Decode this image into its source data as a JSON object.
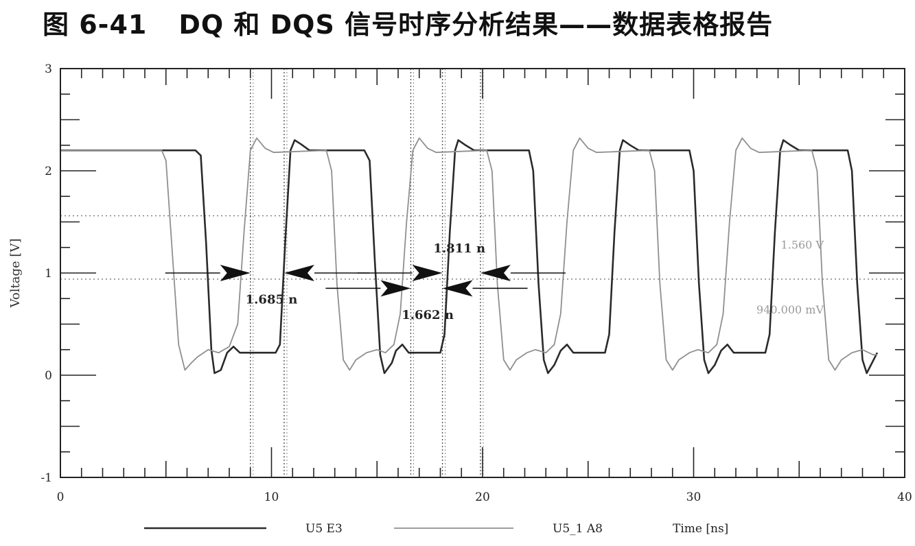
{
  "figure": {
    "number": "图 6-41",
    "caption": "DQ 和 DQS 信号时序分析结果——数据表格报告"
  },
  "chart_data": {
    "type": "line",
    "xlabel": "Time [ns]",
    "ylabel": "Voltage [V]",
    "xlim": [
      0,
      40
    ],
    "ylim": [
      -1,
      3
    ],
    "x_ticks": [
      "0",
      "10",
      "20",
      "30",
      "40"
    ],
    "y_ticks": [
      "-1",
      "0",
      "1",
      "2",
      "3"
    ],
    "grid": false,
    "legend_position": "bottom",
    "series": [
      {
        "name": "U5 E3",
        "color": "#2a2a2a",
        "points": [
          [
            0,
            2.2
          ],
          [
            6.4,
            2.2
          ],
          [
            6.65,
            2.15
          ],
          [
            6.9,
            1.3
          ],
          [
            7.15,
            0.25
          ],
          [
            7.3,
            0.02
          ],
          [
            7.6,
            0.05
          ],
          [
            7.9,
            0.22
          ],
          [
            8.2,
            0.28
          ],
          [
            8.5,
            0.22
          ],
          [
            10.2,
            0.22
          ],
          [
            10.4,
            0.3
          ],
          [
            10.65,
            1.3
          ],
          [
            10.9,
            2.2
          ],
          [
            11.1,
            2.3
          ],
          [
            11.4,
            2.26
          ],
          [
            11.8,
            2.2
          ],
          [
            14.4,
            2.2
          ],
          [
            14.65,
            2.1
          ],
          [
            14.9,
            1.1
          ],
          [
            15.15,
            0.2
          ],
          [
            15.35,
            0.02
          ],
          [
            15.7,
            0.12
          ],
          [
            15.9,
            0.24
          ],
          [
            16.2,
            0.3
          ],
          [
            16.5,
            0.22
          ],
          [
            18.0,
            0.22
          ],
          [
            18.2,
            0.4
          ],
          [
            18.45,
            1.4
          ],
          [
            18.7,
            2.2
          ],
          [
            18.85,
            2.3
          ],
          [
            19.2,
            2.25
          ],
          [
            19.6,
            2.2
          ],
          [
            22.2,
            2.2
          ],
          [
            22.4,
            2.0
          ],
          [
            22.65,
            0.9
          ],
          [
            22.9,
            0.15
          ],
          [
            23.1,
            0.02
          ],
          [
            23.4,
            0.1
          ],
          [
            23.7,
            0.24
          ],
          [
            24.0,
            0.3
          ],
          [
            24.3,
            0.22
          ],
          [
            25.8,
            0.22
          ],
          [
            26.0,
            0.4
          ],
          [
            26.25,
            1.4
          ],
          [
            26.5,
            2.2
          ],
          [
            26.65,
            2.3
          ],
          [
            27.0,
            2.25
          ],
          [
            27.4,
            2.2
          ],
          [
            29.8,
            2.2
          ],
          [
            30.0,
            2.0
          ],
          [
            30.25,
            0.9
          ],
          [
            30.5,
            0.15
          ],
          [
            30.7,
            0.02
          ],
          [
            31.0,
            0.1
          ],
          [
            31.3,
            0.24
          ],
          [
            31.6,
            0.3
          ],
          [
            31.9,
            0.22
          ],
          [
            33.4,
            0.22
          ],
          [
            33.6,
            0.4
          ],
          [
            33.85,
            1.4
          ],
          [
            34.1,
            2.2
          ],
          [
            34.25,
            2.3
          ],
          [
            34.6,
            2.25
          ],
          [
            35.0,
            2.2
          ],
          [
            37.3,
            2.2
          ],
          [
            37.5,
            2.0
          ],
          [
            37.75,
            0.9
          ],
          [
            38.0,
            0.15
          ],
          [
            38.2,
            0.02
          ],
          [
            38.4,
            0.1
          ],
          [
            38.7,
            0.22
          ]
        ]
      },
      {
        "name": "U5_1 A8",
        "color": "#8f8f8f",
        "points": [
          [
            0,
            2.2
          ],
          [
            4.8,
            2.2
          ],
          [
            5.0,
            2.1
          ],
          [
            5.3,
            1.2
          ],
          [
            5.6,
            0.3
          ],
          [
            5.9,
            0.05
          ],
          [
            6.2,
            0.12
          ],
          [
            6.5,
            0.18
          ],
          [
            7.0,
            0.25
          ],
          [
            7.5,
            0.22
          ],
          [
            8.0,
            0.28
          ],
          [
            8.4,
            0.5
          ],
          [
            8.7,
            1.4
          ],
          [
            9.0,
            2.2
          ],
          [
            9.3,
            2.32
          ],
          [
            9.7,
            2.22
          ],
          [
            10.1,
            2.18
          ],
          [
            12.6,
            2.2
          ],
          [
            12.85,
            2.0
          ],
          [
            13.1,
            0.9
          ],
          [
            13.4,
            0.15
          ],
          [
            13.7,
            0.05
          ],
          [
            14.0,
            0.15
          ],
          [
            14.5,
            0.22
          ],
          [
            15.0,
            0.25
          ],
          [
            15.4,
            0.22
          ],
          [
            15.8,
            0.3
          ],
          [
            16.1,
            0.6
          ],
          [
            16.4,
            1.5
          ],
          [
            16.7,
            2.2
          ],
          [
            17.0,
            2.32
          ],
          [
            17.4,
            2.22
          ],
          [
            17.8,
            2.18
          ],
          [
            20.2,
            2.2
          ],
          [
            20.45,
            2.0
          ],
          [
            20.7,
            0.9
          ],
          [
            21.0,
            0.15
          ],
          [
            21.3,
            0.05
          ],
          [
            21.6,
            0.15
          ],
          [
            22.1,
            0.22
          ],
          [
            22.5,
            0.25
          ],
          [
            23.0,
            0.22
          ],
          [
            23.4,
            0.3
          ],
          [
            23.7,
            0.6
          ],
          [
            24.0,
            1.5
          ],
          [
            24.3,
            2.2
          ],
          [
            24.6,
            2.32
          ],
          [
            25.0,
            2.22
          ],
          [
            25.4,
            2.18
          ],
          [
            27.9,
            2.2
          ],
          [
            28.15,
            2.0
          ],
          [
            28.4,
            0.9
          ],
          [
            28.7,
            0.15
          ],
          [
            29.0,
            0.05
          ],
          [
            29.3,
            0.15
          ],
          [
            29.8,
            0.22
          ],
          [
            30.2,
            0.25
          ],
          [
            30.7,
            0.22
          ],
          [
            31.1,
            0.3
          ],
          [
            31.4,
            0.6
          ],
          [
            31.7,
            1.5
          ],
          [
            32.0,
            2.2
          ],
          [
            32.3,
            2.32
          ],
          [
            32.7,
            2.22
          ],
          [
            33.1,
            2.18
          ],
          [
            35.6,
            2.2
          ],
          [
            35.85,
            2.0
          ],
          [
            36.1,
            0.9
          ],
          [
            36.4,
            0.15
          ],
          [
            36.7,
            0.05
          ],
          [
            37.0,
            0.15
          ],
          [
            37.5,
            0.22
          ],
          [
            38.0,
            0.25
          ],
          [
            38.5,
            0.2
          ],
          [
            38.7,
            0.2
          ]
        ]
      }
    ],
    "reference_lines": [
      {
        "y": 1.56,
        "label": "1.560 V"
      },
      {
        "y": 0.94,
        "label": "940.000 mV"
      }
    ],
    "cursor_lines_x": [
      9.0,
      10.6,
      16.6,
      18.1,
      19.9
    ],
    "measurements": [
      {
        "label": "1.685 n",
        "from_x": 9.0,
        "to_x": 10.6,
        "y": 1.0,
        "text_x": 10.0,
        "text_y": 0.7
      },
      {
        "label": "1.811 n",
        "from_x": 18.1,
        "to_x": 19.9,
        "y": 1.0,
        "text_x": 18.9,
        "text_y": 1.2
      },
      {
        "label": "1.662 n",
        "from_x": 16.6,
        "to_x": 18.1,
        "y": 0.85,
        "text_x": 17.4,
        "text_y": 0.55
      }
    ]
  }
}
